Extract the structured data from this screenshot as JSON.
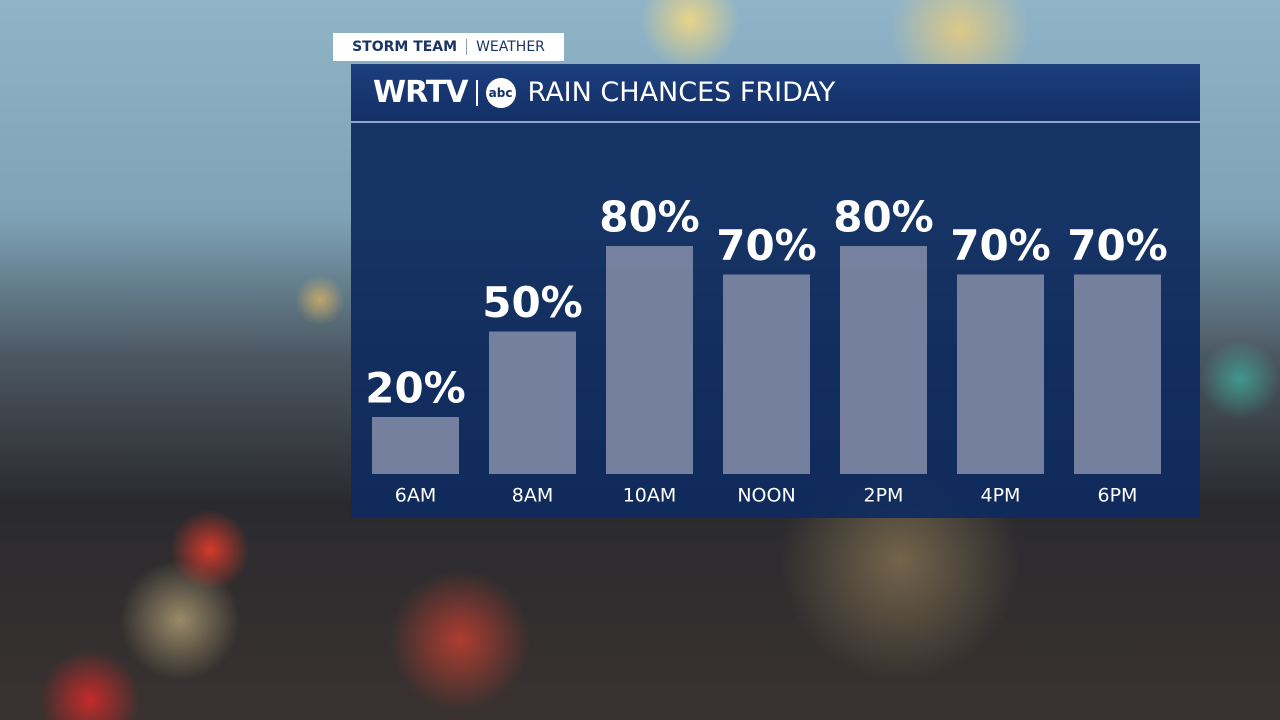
{
  "header": {
    "tag_left": "STORM TEAM",
    "tag_right": "WEATHER",
    "station": "WRTV",
    "network": "abc"
  },
  "chart_data": {
    "type": "bar",
    "title": "RAIN CHANCES FRIDAY",
    "categories": [
      "6AM",
      "8AM",
      "10AM",
      "NOON",
      "2PM",
      "4PM",
      "6PM"
    ],
    "values": [
      20,
      50,
      80,
      70,
      80,
      70,
      70
    ],
    "value_labels": [
      "20%",
      "50%",
      "80%",
      "70%",
      "80%",
      "70%",
      "70%"
    ],
    "color": "#7f8aa4",
    "ylim": [
      0,
      100
    ]
  }
}
